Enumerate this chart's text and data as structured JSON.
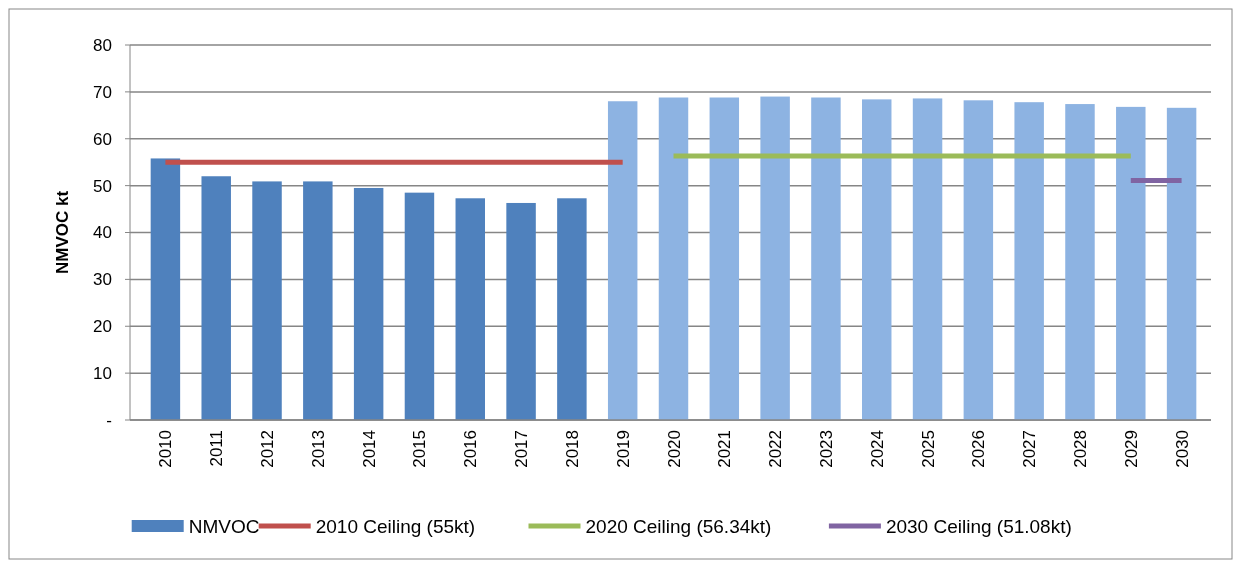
{
  "chart_data": {
    "type": "bar",
    "ylabel": "NMVOC kt",
    "categories": [
      "2010",
      "2011",
      "2012",
      "2013",
      "2014",
      "2015",
      "2016",
      "2017",
      "2018",
      "2019",
      "2020",
      "2021",
      "2022",
      "2023",
      "2024",
      "2025",
      "2026",
      "2027",
      "2028",
      "2029",
      "2030"
    ],
    "series": [
      {
        "name": "NMVOC",
        "color": "#4f81bd",
        "colors": [
          "#4f81bd",
          "#4f81bd",
          "#4f81bd",
          "#4f81bd",
          "#4f81bd",
          "#4f81bd",
          "#4f81bd",
          "#4f81bd",
          "#4f81bd",
          "#8db3e2",
          "#8db3e2",
          "#8db3e2",
          "#8db3e2",
          "#8db3e2",
          "#8db3e2",
          "#8db3e2",
          "#8db3e2",
          "#8db3e2",
          "#8db3e2",
          "#8db3e2",
          "#8db3e2"
        ],
        "values": [
          55.8,
          52,
          50.9,
          50.9,
          49.5,
          48.5,
          47.3,
          46.3,
          47.3,
          68,
          68.8,
          68.8,
          69,
          68.8,
          68.4,
          68.6,
          68.2,
          67.8,
          67.4,
          66.8,
          66.6
        ]
      },
      {
        "name": "2010 Ceiling (55kt)",
        "type": "line",
        "color": "#c0504d",
        "values": [
          55,
          55,
          55,
          55,
          55,
          55,
          55,
          55,
          55,
          55,
          null,
          null,
          null,
          null,
          null,
          null,
          null,
          null,
          null,
          null,
          null
        ]
      },
      {
        "name": "2020 Ceiling (56.34kt)",
        "type": "line",
        "color": "#9bbb59",
        "values": [
          null,
          null,
          null,
          null,
          null,
          null,
          null,
          null,
          null,
          null,
          56.3,
          56.3,
          56.3,
          56.3,
          56.3,
          56.3,
          56.3,
          56.3,
          56.3,
          56.3,
          null
        ]
      },
      {
        "name": "2030 Ceiling (51.08kt)",
        "type": "line",
        "color": "#8064a2",
        "values": [
          null,
          null,
          null,
          null,
          null,
          null,
          null,
          null,
          null,
          null,
          null,
          null,
          null,
          null,
          null,
          null,
          null,
          null,
          null,
          51.1,
          51.1
        ]
      }
    ],
    "ylim": [
      0,
      80
    ],
    "yticks": [
      {
        "value": 0,
        "label": "-"
      },
      10,
      20,
      30,
      40,
      50,
      60,
      70,
      80
    ],
    "grid": "y",
    "legend": "bottom",
    "marker": "none",
    "line_style": "solid"
  }
}
